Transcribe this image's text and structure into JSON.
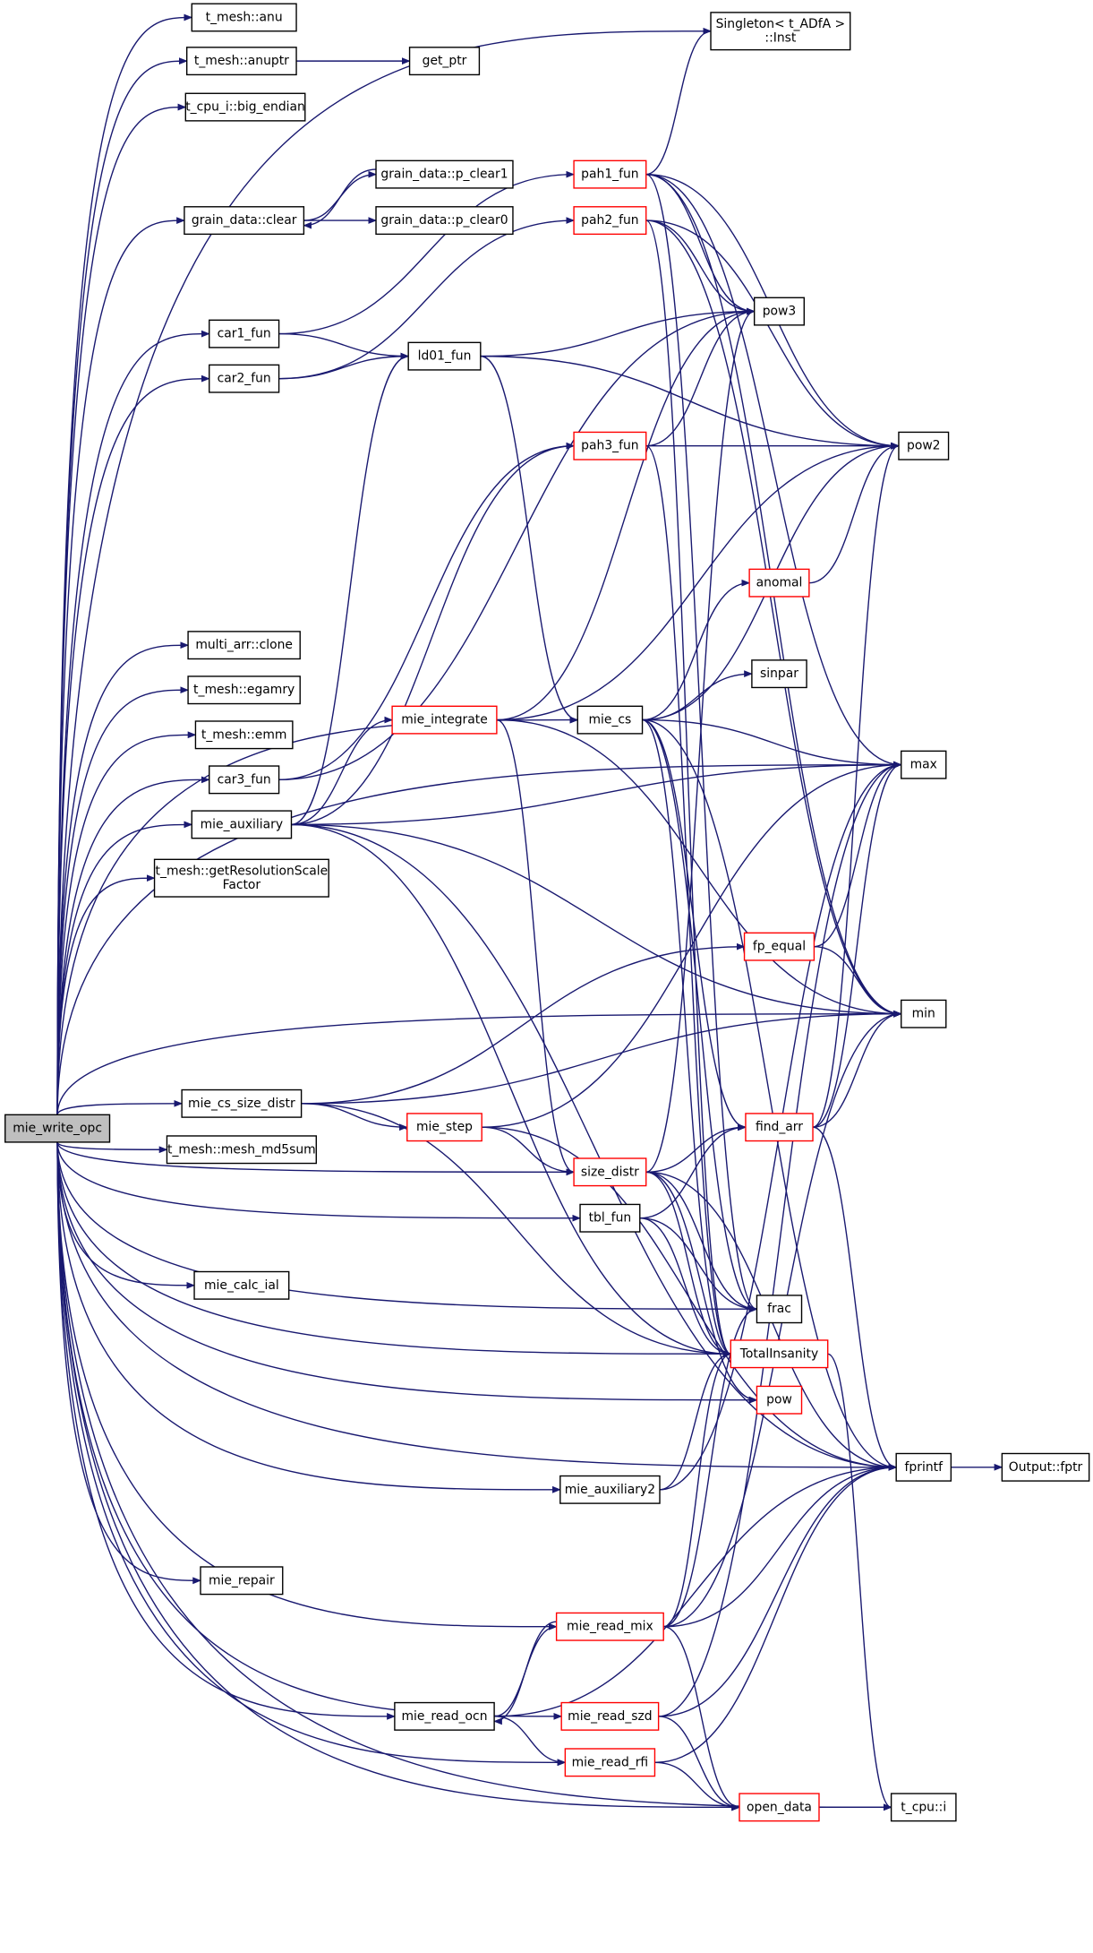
{
  "nodes": [
    {
      "lines": [
        "mie_write_opc"
      ],
      "border": "#000000",
      "fill": "#bfbfbf"
    },
    {
      "lines": [
        "t_mesh::anu"
      ],
      "border": "#000000"
    },
    {
      "lines": [
        "t_mesh::anuptr"
      ],
      "border": "#000000"
    },
    {
      "lines": [
        "get_ptr"
      ],
      "border": "#000000"
    },
    {
      "lines": [
        "t_cpu_i::big_endian"
      ],
      "border": "#000000"
    },
    {
      "lines": [
        "Singleton< t_ADfA >",
        "::Inst"
      ],
      "border": "#000000"
    },
    {
      "lines": [
        "grain_data::clear"
      ],
      "border": "#000000"
    },
    {
      "lines": [
        "grain_data::p_clear1"
      ],
      "border": "#000000"
    },
    {
      "lines": [
        "grain_data::p_clear0"
      ],
      "border": "#000000"
    },
    {
      "lines": [
        "pah1_fun"
      ],
      "border": "#ff0000"
    },
    {
      "lines": [
        "pah2_fun"
      ],
      "border": "#ff0000"
    },
    {
      "lines": [
        "car1_fun"
      ],
      "border": "#000000"
    },
    {
      "lines": [
        "car2_fun"
      ],
      "border": "#000000"
    },
    {
      "lines": [
        "ld01_fun"
      ],
      "border": "#000000"
    },
    {
      "lines": [
        "pow3"
      ],
      "border": "#000000"
    },
    {
      "lines": [
        "pow2"
      ],
      "border": "#000000"
    },
    {
      "lines": [
        "pah3_fun"
      ],
      "border": "#ff0000"
    },
    {
      "lines": [
        "anomal"
      ],
      "border": "#ff0000"
    },
    {
      "lines": [
        "sinpar"
      ],
      "border": "#000000"
    },
    {
      "lines": [
        "multi_arr::clone"
      ],
      "border": "#000000"
    },
    {
      "lines": [
        "t_mesh::egamry"
      ],
      "border": "#000000"
    },
    {
      "lines": [
        "t_mesh::emm"
      ],
      "border": "#000000"
    },
    {
      "lines": [
        "car3_fun"
      ],
      "border": "#000000"
    },
    {
      "lines": [
        "mie_integrate"
      ],
      "border": "#ff0000"
    },
    {
      "lines": [
        "mie_cs"
      ],
      "border": "#000000"
    },
    {
      "lines": [
        "max"
      ],
      "border": "#000000"
    },
    {
      "lines": [
        "mie_auxiliary"
      ],
      "border": "#000000"
    },
    {
      "lines": [
        "t_mesh::getResolutionScale",
        "Factor"
      ],
      "border": "#000000"
    },
    {
      "lines": [
        "fp_equal"
      ],
      "border": "#ff0000"
    },
    {
      "lines": [
        "min"
      ],
      "border": "#000000"
    },
    {
      "lines": [
        "mie_cs_size_distr"
      ],
      "border": "#000000"
    },
    {
      "lines": [
        "t_mesh::mesh_md5sum"
      ],
      "border": "#000000"
    },
    {
      "lines": [
        "mie_step"
      ],
      "border": "#ff0000"
    },
    {
      "lines": [
        "find_arr"
      ],
      "border": "#ff0000"
    },
    {
      "lines": [
        "size_distr"
      ],
      "border": "#ff0000"
    },
    {
      "lines": [
        "tbl_fun"
      ],
      "border": "#000000"
    },
    {
      "lines": [
        "mie_calc_ial"
      ],
      "border": "#000000"
    },
    {
      "lines": [
        "frac"
      ],
      "border": "#000000"
    },
    {
      "lines": [
        "TotalInsanity"
      ],
      "border": "#ff0000"
    },
    {
      "lines": [
        "pow"
      ],
      "border": "#ff0000"
    },
    {
      "lines": [
        "fprintf"
      ],
      "border": "#000000"
    },
    {
      "lines": [
        "Output::fptr"
      ],
      "border": "#000000"
    },
    {
      "lines": [
        "mie_auxiliary2"
      ],
      "border": "#000000"
    },
    {
      "lines": [
        "mie_repair"
      ],
      "border": "#000000"
    },
    {
      "lines": [
        "mie_read_mix"
      ],
      "border": "#ff0000"
    },
    {
      "lines": [
        "mie_read_ocn"
      ],
      "border": "#000000"
    },
    {
      "lines": [
        "mie_read_szd"
      ],
      "border": "#ff0000"
    },
    {
      "lines": [
        "mie_read_rfi"
      ],
      "border": "#ff0000"
    },
    {
      "lines": [
        "open_data"
      ],
      "border": "#ff0000"
    },
    {
      "lines": [
        "t_cpu::i"
      ],
      "border": "#000000"
    }
  ],
  "edge_color": "#191970"
}
